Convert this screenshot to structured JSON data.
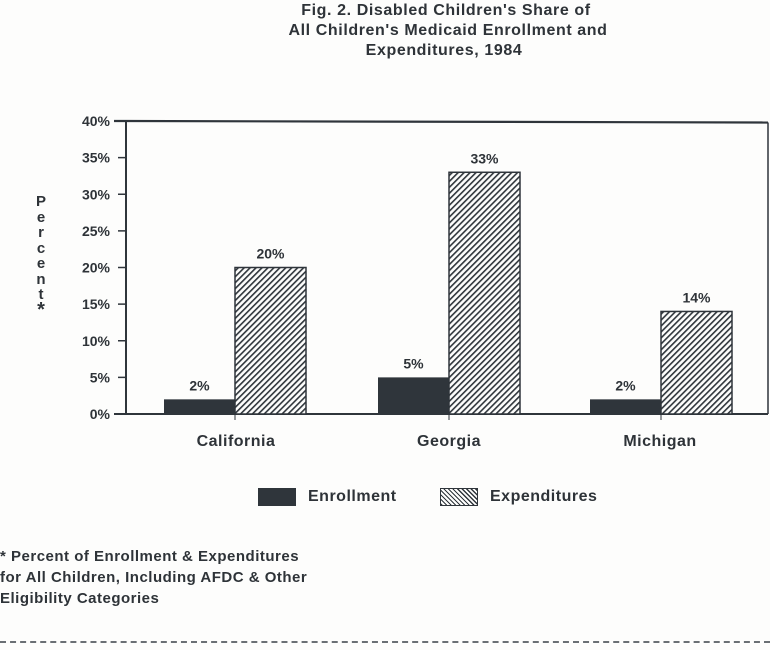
{
  "chart_data": {
    "type": "bar",
    "title_lines": [
      "Fig. 2.  Disabled Children's Share of",
      "All Children's Medicaid Enrollment and",
      "Expenditures, 1984"
    ],
    "xlabel": "",
    "ylabel": "Percent*",
    "ylabel_letters": [
      "P",
      "e",
      "r",
      "c",
      "e",
      "n",
      "t",
      "*"
    ],
    "ylim": [
      0,
      40
    ],
    "yticks": [
      0,
      5,
      10,
      15,
      20,
      25,
      30,
      35,
      40
    ],
    "ytick_labels": [
      "0%",
      "5%",
      "10%",
      "15%",
      "20%",
      "25%",
      "30%",
      "35%",
      "40%"
    ],
    "categories": [
      "California",
      "Georgia",
      "Michigan"
    ],
    "series": [
      {
        "name": "Enrollment",
        "values": [
          2,
          5,
          2
        ],
        "labels": [
          "2%",
          "5%",
          "2%"
        ],
        "fill": "solid",
        "color": "#2f353b"
      },
      {
        "name": "Expenditures",
        "values": [
          20,
          33,
          14
        ],
        "labels": [
          "20%",
          "33%",
          "14%"
        ],
        "fill": "hatched",
        "color": "#2f353b"
      }
    ],
    "legend_position": "bottom-center",
    "grid": false,
    "footnote_lines": [
      "* Percent of Enrollment & Expenditures",
      "for All Children, Including AFDC & Other",
      "Eligibility Categories"
    ]
  }
}
